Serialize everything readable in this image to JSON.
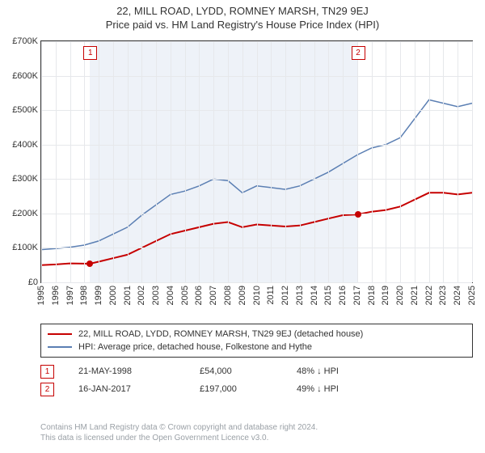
{
  "title": {
    "line1": "22, MILL ROAD, LYDD, ROMNEY MARSH, TN29 9EJ",
    "line2": "Price paid vs. HM Land Registry's House Price Index (HPI)"
  },
  "chart": {
    "type": "line",
    "background_color": "#ffffff",
    "shaded_band_color": "#eef2f8",
    "grid_color": "#e6e8eb",
    "border_color": "#333333",
    "text_color": "#333333",
    "label_fontsize": 11,
    "x_years": [
      1995,
      1996,
      1997,
      1998,
      1999,
      2000,
      2001,
      2002,
      2003,
      2004,
      2005,
      2006,
      2007,
      2008,
      2009,
      2010,
      2011,
      2012,
      2013,
      2014,
      2015,
      2016,
      2017,
      2018,
      2019,
      2020,
      2021,
      2022,
      2023,
      2024,
      2025
    ],
    "xlim": [
      1995,
      2025
    ],
    "ylim": [
      0,
      700
    ],
    "yticks": [
      0,
      100,
      200,
      300,
      400,
      500,
      600,
      700
    ],
    "ytick_labels": [
      "£0",
      "£100K",
      "£200K",
      "£300K",
      "£400K",
      "£500K",
      "£600K",
      "£700K"
    ],
    "shaded_range": [
      1998.39,
      2017.04
    ],
    "series": [
      {
        "id": "price_paid",
        "label": "22, MILL ROAD, LYDD, ROMNEY MARSH, TN29 9EJ (detached house)",
        "color": "#c60000",
        "line_width": 2,
        "points": [
          [
            1995,
            50
          ],
          [
            1996,
            52
          ],
          [
            1997,
            55
          ],
          [
            1998.39,
            54
          ],
          [
            1999,
            60
          ],
          [
            2000,
            70
          ],
          [
            2001,
            80
          ],
          [
            2002,
            100
          ],
          [
            2003,
            120
          ],
          [
            2004,
            140
          ],
          [
            2005,
            150
          ],
          [
            2006,
            160
          ],
          [
            2007,
            170
          ],
          [
            2008,
            175
          ],
          [
            2009,
            160
          ],
          [
            2010,
            168
          ],
          [
            2011,
            165
          ],
          [
            2012,
            162
          ],
          [
            2013,
            165
          ],
          [
            2014,
            175
          ],
          [
            2015,
            185
          ],
          [
            2016,
            195
          ],
          [
            2017.04,
            197
          ],
          [
            2018,
            205
          ],
          [
            2019,
            210
          ],
          [
            2020,
            220
          ],
          [
            2021,
            240
          ],
          [
            2022,
            260
          ],
          [
            2023,
            260
          ],
          [
            2024,
            255
          ],
          [
            2025,
            260
          ]
        ]
      },
      {
        "id": "hpi",
        "label": "HPI: Average price, detached house, Folkestone and Hythe",
        "color": "#5b7fb3",
        "line_width": 1.5,
        "points": [
          [
            1995,
            95
          ],
          [
            1996,
            98
          ],
          [
            1997,
            102
          ],
          [
            1998,
            108
          ],
          [
            1999,
            120
          ],
          [
            2000,
            140
          ],
          [
            2001,
            160
          ],
          [
            2002,
            195
          ],
          [
            2003,
            225
          ],
          [
            2004,
            255
          ],
          [
            2005,
            265
          ],
          [
            2006,
            280
          ],
          [
            2007,
            300
          ],
          [
            2008,
            295
          ],
          [
            2009,
            260
          ],
          [
            2010,
            280
          ],
          [
            2011,
            275
          ],
          [
            2012,
            270
          ],
          [
            2013,
            280
          ],
          [
            2014,
            300
          ],
          [
            2015,
            320
          ],
          [
            2016,
            345
          ],
          [
            2017,
            370
          ],
          [
            2018,
            390
          ],
          [
            2019,
            400
          ],
          [
            2020,
            420
          ],
          [
            2021,
            475
          ],
          [
            2022,
            530
          ],
          [
            2023,
            520
          ],
          [
            2024,
            510
          ],
          [
            2025,
            520
          ]
        ]
      }
    ],
    "markers": [
      {
        "n": "1",
        "x": 1998.39,
        "y": 54,
        "box_y_offset": -1,
        "box_at_top": true
      },
      {
        "n": "2",
        "x": 2017.04,
        "y": 197,
        "box_y_offset": -1,
        "box_at_top": true
      }
    ]
  },
  "legend": {
    "rows": [
      {
        "color": "#c60000",
        "label": "22, MILL ROAD, LYDD, ROMNEY MARSH, TN29 9EJ (detached house)"
      },
      {
        "color": "#5b7fb3",
        "label": "HPI: Average price, detached house, Folkestone and Hythe"
      }
    ]
  },
  "sales": [
    {
      "n": "1",
      "date": "21-MAY-1998",
      "price": "£54,000",
      "pct": "48% ↓ HPI"
    },
    {
      "n": "2",
      "date": "16-JAN-2017",
      "price": "£197,000",
      "pct": "49% ↓ HPI"
    }
  ],
  "footer": {
    "line1": "Contains HM Land Registry data © Crown copyright and database right 2024.",
    "line2": "This data is licensed under the Open Government Licence v3.0."
  }
}
